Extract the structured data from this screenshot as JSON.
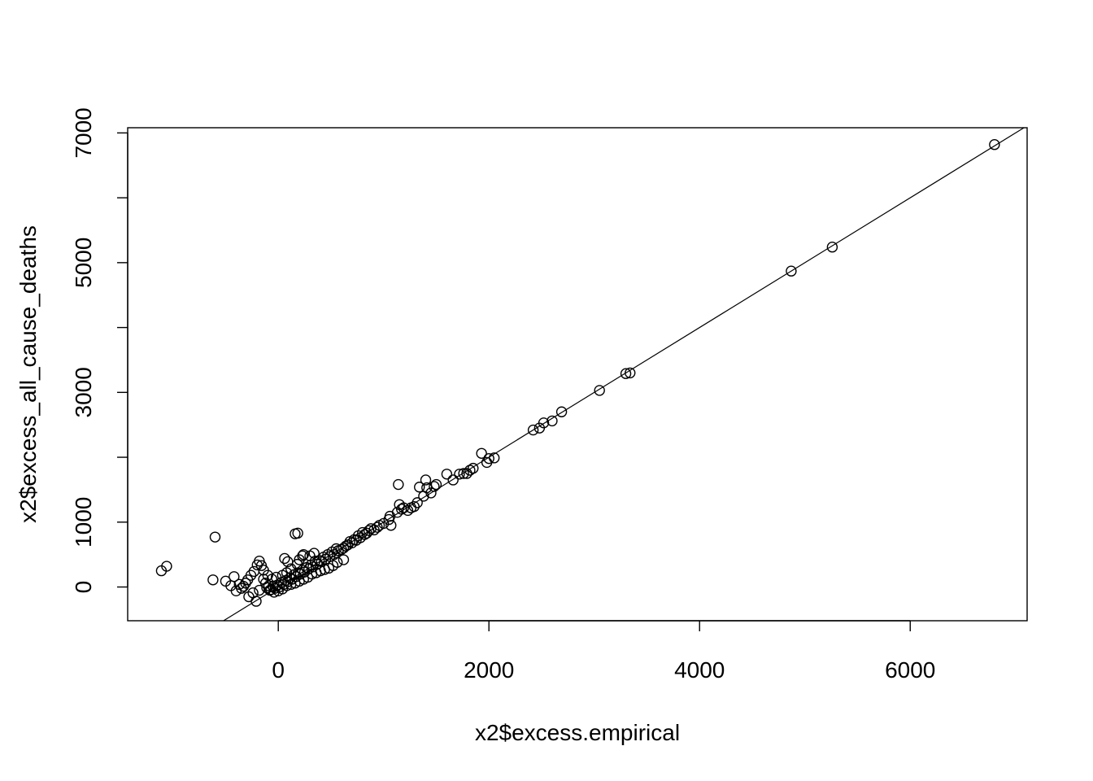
{
  "chart_data": {
    "type": "scatter",
    "xlabel": "x2$excess.empirical",
    "ylabel": "x2$excess_all_cause_deaths",
    "xlim": [
      -1430,
      7110
    ],
    "ylim": [
      -520,
      7080
    ],
    "x_ticks": [
      0,
      2000,
      4000,
      6000
    ],
    "x_tick_labels": [
      "0",
      "2000",
      "4000",
      "6000"
    ],
    "y_ticks": [
      0,
      1000,
      2000,
      3000,
      4000,
      5000,
      6000,
      7000
    ],
    "y_tick_labels": [
      "0",
      "1000",
      "",
      "3000",
      "",
      "5000",
      "",
      "7000"
    ],
    "reference_line": {
      "type": "abline",
      "intercept": 0,
      "slope": 1
    },
    "point_style": "open-circle",
    "series": [
      {
        "points": [
          [
            6800,
            6820
          ],
          [
            5260,
            5240
          ],
          [
            4870,
            4870
          ],
          [
            3340,
            3300
          ],
          [
            3300,
            3290
          ],
          [
            3050,
            3030
          ],
          [
            2690,
            2700
          ],
          [
            2600,
            2560
          ],
          [
            2520,
            2530
          ],
          [
            2480,
            2450
          ],
          [
            2420,
            2420
          ],
          [
            2050,
            1990
          ],
          [
            2000,
            1980
          ],
          [
            1980,
            1920
          ],
          [
            1930,
            2060
          ],
          [
            1850,
            1830
          ],
          [
            1820,
            1800
          ],
          [
            1790,
            1750
          ],
          [
            1760,
            1750
          ],
          [
            1720,
            1740
          ],
          [
            1660,
            1650
          ],
          [
            1600,
            1740
          ],
          [
            1500,
            1580
          ],
          [
            1480,
            1550
          ],
          [
            1450,
            1450
          ],
          [
            1410,
            1530
          ],
          [
            1400,
            1650
          ],
          [
            1380,
            1400
          ],
          [
            1340,
            1540
          ],
          [
            1320,
            1300
          ],
          [
            1290,
            1240
          ],
          [
            1260,
            1220
          ],
          [
            1230,
            1180
          ],
          [
            1190,
            1220
          ],
          [
            1170,
            1200
          ],
          [
            1150,
            1270
          ],
          [
            1140,
            1580
          ],
          [
            1130,
            1150
          ],
          [
            1070,
            950
          ],
          [
            1060,
            1090
          ],
          [
            1050,
            1040
          ],
          [
            1000,
            980
          ],
          [
            960,
            950
          ],
          [
            940,
            920
          ],
          [
            910,
            880
          ],
          [
            880,
            900
          ],
          [
            860,
            870
          ],
          [
            840,
            830
          ],
          [
            820,
            810
          ],
          [
            800,
            840
          ],
          [
            780,
            760
          ],
          [
            760,
            790
          ],
          [
            740,
            720
          ],
          [
            720,
            730
          ],
          [
            700,
            680
          ],
          [
            680,
            700
          ],
          [
            660,
            650
          ],
          [
            640,
            630
          ],
          [
            620,
            600
          ],
          [
            600,
            580
          ],
          [
            570,
            560
          ],
          [
            550,
            590
          ],
          [
            530,
            500
          ],
          [
            510,
            540
          ],
          [
            490,
            470
          ],
          [
            470,
            500
          ],
          [
            450,
            430
          ],
          [
            430,
            460
          ],
          [
            410,
            390
          ],
          [
            390,
            410
          ],
          [
            370,
            350
          ],
          [
            350,
            400
          ],
          [
            330,
            310
          ],
          [
            310,
            340
          ],
          [
            290,
            280
          ],
          [
            270,
            300
          ],
          [
            250,
            230
          ],
          [
            230,
            260
          ],
          [
            210,
            200
          ],
          [
            190,
            220
          ],
          [
            170,
            160
          ],
          [
            150,
            190
          ],
          [
            130,
            120
          ],
          [
            110,
            140
          ],
          [
            90,
            80
          ],
          [
            70,
            100
          ],
          [
            50,
            40
          ],
          [
            30,
            70
          ],
          [
            10,
            0
          ],
          [
            -10,
            30
          ],
          [
            -30,
            -20
          ],
          [
            -50,
            10
          ],
          [
            -70,
            -40
          ],
          [
            -90,
            20
          ],
          [
            -110,
            -10
          ],
          [
            560,
            380
          ],
          [
            620,
            420
          ],
          [
            520,
            330
          ],
          [
            480,
            290
          ],
          [
            440,
            270
          ],
          [
            400,
            250
          ],
          [
            360,
            220
          ],
          [
            320,
            200
          ],
          [
            280,
            150
          ],
          [
            240,
            120
          ],
          [
            200,
            90
          ],
          [
            160,
            60
          ],
          [
            120,
            40
          ],
          [
            80,
            20
          ],
          [
            40,
            -30
          ],
          [
            0,
            -60
          ],
          [
            -40,
            -80
          ],
          [
            -80,
            -50
          ],
          [
            -120,
            60
          ],
          [
            -140,
            120
          ],
          [
            200,
            420
          ],
          [
            240,
            500
          ],
          [
            180,
            350
          ],
          [
            300,
            480
          ],
          [
            340,
            520
          ],
          [
            120,
            280
          ],
          [
            80,
            220
          ],
          [
            40,
            180
          ],
          [
            -20,
            150
          ],
          [
            -60,
            120
          ],
          [
            -100,
            180
          ],
          [
            -140,
            260
          ],
          [
            -160,
            330
          ],
          [
            -180,
            400
          ],
          [
            -200,
            340
          ],
          [
            -230,
            240
          ],
          [
            -260,
            180
          ],
          [
            -290,
            110
          ],
          [
            -310,
            60
          ],
          [
            -330,
            10
          ],
          [
            -350,
            -20
          ],
          [
            -370,
            40
          ],
          [
            -400,
            -60
          ],
          [
            -420,
            160
          ],
          [
            -450,
            20
          ],
          [
            -500,
            90
          ],
          [
            -210,
            -220
          ],
          [
            -240,
            -90
          ],
          [
            -180,
            -50
          ],
          [
            -280,
            -150
          ],
          [
            160,
            820
          ],
          [
            185,
            830
          ],
          [
            230,
            480
          ],
          [
            60,
            440
          ],
          [
            90,
            390
          ],
          [
            -600,
            770
          ],
          [
            -620,
            110
          ],
          [
            -1060,
            320
          ],
          [
            -1110,
            250
          ]
        ]
      }
    ]
  }
}
